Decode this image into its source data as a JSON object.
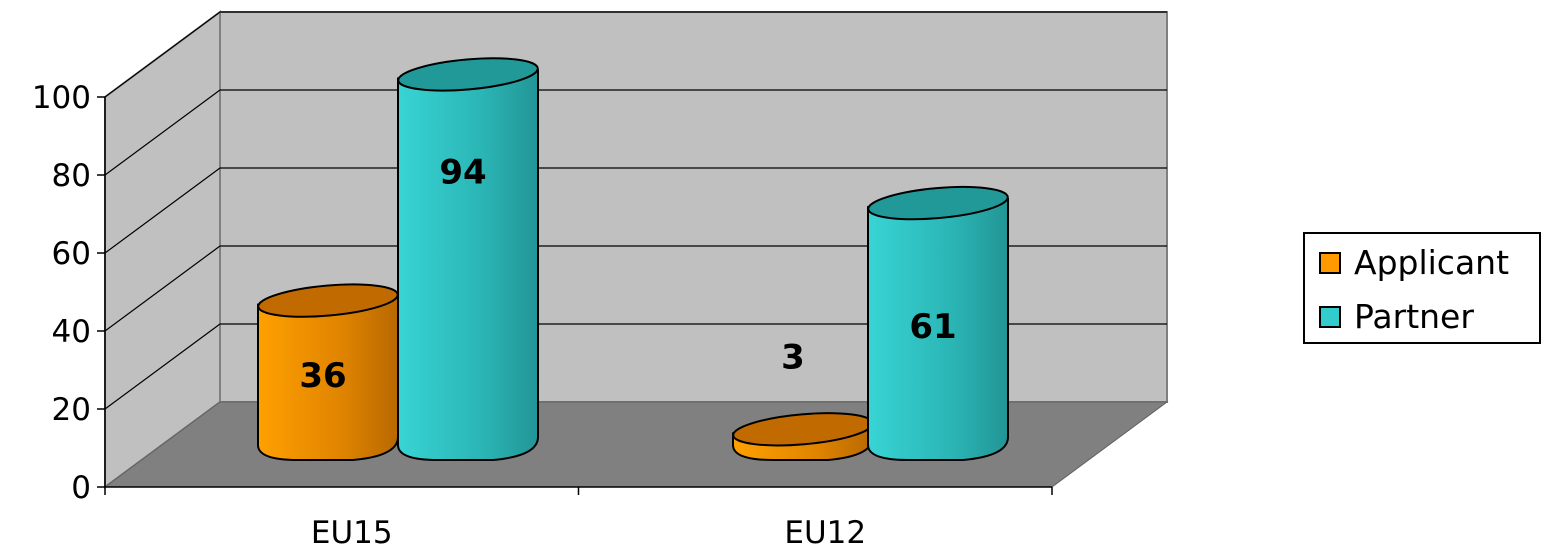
{
  "chart_data": {
    "type": "bar",
    "style": "3d-cylinder",
    "categories": [
      "EU15",
      "EU12"
    ],
    "series": [
      {
        "name": "Applicant",
        "values": [
          36,
          3
        ],
        "color": "#FF9900",
        "dark_color": "#C06A00"
      },
      {
        "name": "Partner",
        "values": [
          94,
          61
        ],
        "color": "#33CCCC",
        "dark_color": "#229999"
      }
    ],
    "yticks": [
      "0",
      "20",
      "40",
      "60",
      "80",
      "100"
    ],
    "ylim": [
      0,
      100
    ],
    "grid": true,
    "legend_position": "right",
    "wall_color": "#C0C0C0",
    "floor_color": "#808080"
  }
}
